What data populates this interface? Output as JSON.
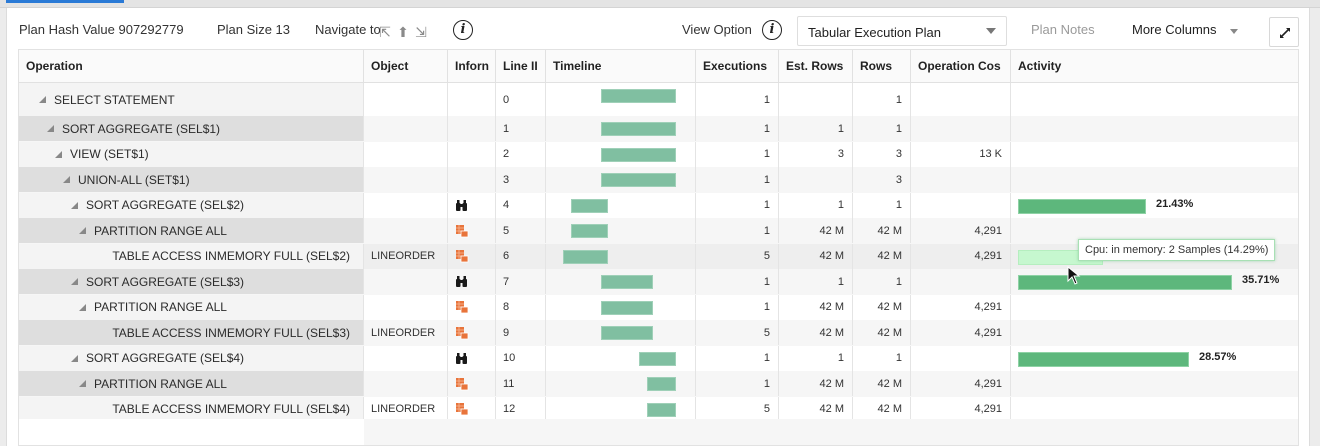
{
  "toolbar": {
    "plan_hash_label": "Plan Hash Value 907292779",
    "plan_size_label": "Plan Size 13",
    "navigate_label": "Navigate to",
    "navigate_icons": [
      "arrow-up-left-icon",
      "arrow-up-icon",
      "arrow-down-right-icon"
    ],
    "view_option_label": "View Option",
    "view_option_selected": "Tabular Execution Plan",
    "plan_notes_label": "Plan Notes",
    "more_columns_label": "More Columns",
    "info_glyph": "i"
  },
  "colors": {
    "timeline_bar": "#80bfa1",
    "activity_bar": "#5db77c",
    "activity_bar_hover": "#c6f7cf",
    "active_tab": "#2a7ad6",
    "object_icon": "#e8743b"
  },
  "table": {
    "columns": [
      "Operation",
      "Object",
      "Inforn",
      "Line II",
      "Timeline",
      "Executions",
      "Est. Rows",
      "Rows",
      "Operation Cos",
      "Activity"
    ],
    "rows": [
      {
        "operation": "SELECT STATEMENT",
        "indent": 0,
        "expandable": true,
        "object": "",
        "info_icon": "",
        "line_id": "0",
        "timeline": [
          55,
          130
        ],
        "executions": "1",
        "est_rows": "",
        "rows": "1",
        "op_cost": "",
        "activity_pct": "",
        "activity_width": 0
      },
      {
        "operation": "SORT AGGREGATE (SEL$1)",
        "indent": 1,
        "expandable": true,
        "object": "",
        "info_icon": "",
        "line_id": "1",
        "timeline": [
          55,
          130
        ],
        "executions": "1",
        "est_rows": "1",
        "rows": "1",
        "op_cost": "",
        "activity_pct": "",
        "activity_width": 0
      },
      {
        "operation": "VIEW (SET$1)",
        "indent": 2,
        "expandable": true,
        "object": "",
        "info_icon": "",
        "line_id": "2",
        "timeline": [
          55,
          130
        ],
        "executions": "1",
        "est_rows": "3",
        "rows": "3",
        "op_cost": "13 K",
        "activity_pct": "",
        "activity_width": 0
      },
      {
        "operation": "UNION-ALL (SET$1)",
        "indent": 3,
        "expandable": true,
        "object": "",
        "info_icon": "",
        "line_id": "3",
        "timeline": [
          55,
          130
        ],
        "executions": "1",
        "est_rows": "",
        "rows": "3",
        "op_cost": "",
        "activity_pct": "",
        "activity_width": 0
      },
      {
        "operation": "SORT AGGREGATE (SEL$2)",
        "indent": 4,
        "expandable": true,
        "object": "",
        "info_icon": "binoculars",
        "line_id": "4",
        "timeline": [
          25,
          62
        ],
        "executions": "1",
        "est_rows": "1",
        "rows": "1",
        "op_cost": "",
        "activity_pct": "21.43%",
        "activity_width": 128
      },
      {
        "operation": "PARTITION RANGE ALL",
        "indent": 5,
        "expandable": true,
        "object": "",
        "info_icon": "table",
        "line_id": "5",
        "timeline": [
          25,
          62
        ],
        "executions": "1",
        "est_rows": "42 M",
        "rows": "42 M",
        "op_cost": "4,291",
        "activity_pct": "",
        "activity_width": 0
      },
      {
        "operation": "TABLE ACCESS INMEMORY FULL (SEL$2)",
        "indent": 6,
        "expandable": false,
        "object": "LINEORDER",
        "info_icon": "table",
        "line_id": "6",
        "timeline": [
          17,
          62
        ],
        "executions": "5",
        "est_rows": "42 M",
        "rows": "42 M",
        "op_cost": "4,291",
        "activity_pct": "14.29%",
        "activity_width": 85,
        "hover": true
      },
      {
        "operation": "SORT AGGREGATE (SEL$3)",
        "indent": 4,
        "expandable": true,
        "object": "",
        "info_icon": "binoculars",
        "line_id": "7",
        "timeline": [
          55,
          107
        ],
        "executions": "1",
        "est_rows": "1",
        "rows": "1",
        "op_cost": "",
        "activity_pct": "35.71%",
        "activity_width": 214
      },
      {
        "operation": "PARTITION RANGE ALL",
        "indent": 5,
        "expandable": true,
        "object": "",
        "info_icon": "table",
        "line_id": "8",
        "timeline": [
          55,
          107
        ],
        "executions": "1",
        "est_rows": "42 M",
        "rows": "42 M",
        "op_cost": "4,291",
        "activity_pct": "",
        "activity_width": 0
      },
      {
        "operation": "TABLE ACCESS INMEMORY FULL (SEL$3)",
        "indent": 6,
        "expandable": false,
        "object": "LINEORDER",
        "info_icon": "table",
        "line_id": "9",
        "timeline": [
          55,
          107
        ],
        "executions": "5",
        "est_rows": "42 M",
        "rows": "42 M",
        "op_cost": "4,291",
        "activity_pct": "",
        "activity_width": 0
      },
      {
        "operation": "SORT AGGREGATE (SEL$4)",
        "indent": 4,
        "expandable": true,
        "object": "",
        "info_icon": "binoculars",
        "line_id": "10",
        "timeline": [
          93,
          130
        ],
        "executions": "1",
        "est_rows": "1",
        "rows": "1",
        "op_cost": "",
        "activity_pct": "28.57%",
        "activity_width": 171
      },
      {
        "operation": "PARTITION RANGE ALL",
        "indent": 5,
        "expandable": true,
        "object": "",
        "info_icon": "table",
        "line_id": "11",
        "timeline": [
          101,
          130
        ],
        "executions": "1",
        "est_rows": "42 M",
        "rows": "42 M",
        "op_cost": "4,291",
        "activity_pct": "",
        "activity_width": 0
      },
      {
        "operation": "TABLE ACCESS INMEMORY FULL (SEL$4)",
        "indent": 6,
        "expandable": false,
        "object": "LINEORDER",
        "info_icon": "table",
        "line_id": "12",
        "timeline": [
          101,
          130
        ],
        "executions": "5",
        "est_rows": "42 M",
        "rows": "42 M",
        "op_cost": "4,291",
        "activity_pct": "",
        "activity_width": 0
      }
    ]
  },
  "tooltip": {
    "text": "Cpu: in memory: 2 Samples (14.29%)"
  }
}
